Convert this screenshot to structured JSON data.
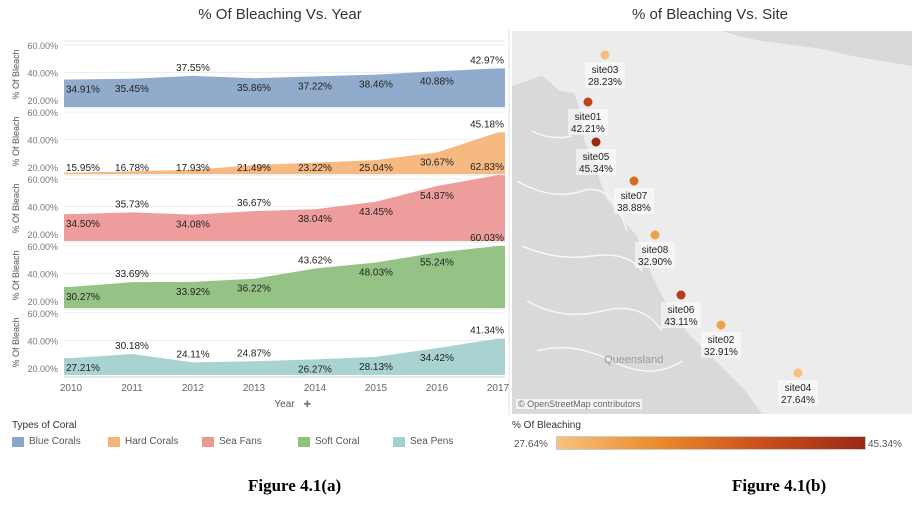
{
  "left_title": "% Of Bleaching Vs. Year",
  "right_title": "% of Bleaching Vs. Site",
  "y_axis_label": "% Of Bleach",
  "x_axis_label": "Year",
  "legend_title": "Types of Coral",
  "color_legend_title": "% Of Bleaching",
  "color_min": "27.64%",
  "color_max": "45.34%",
  "attribution": "© OpenStreetMap contributors",
  "map_label": "Queensland",
  "caption_a": "Figure 4.1(a)",
  "caption_b": "Figure 4.1(b)",
  "colors": {
    "Blue Corals": "#8aa6c8",
    "Hard Corals": "#f5b57a",
    "Sea Fans": "#ec9897",
    "Soft Coral": "#8fc07e",
    "Sea Pens": "#a4d1cd"
  },
  "chart_data": [
    {
      "type": "area",
      "title": "% Of Bleaching Vs. Year",
      "xlabel": "Year",
      "ylabel": "% Of Bleach",
      "x": [
        2010,
        2011,
        2012,
        2013,
        2014,
        2015,
        2016,
        2017
      ],
      "ytick_labels": [
        "20.00%",
        "40.00%",
        "60.00%"
      ],
      "ylim": [
        20,
        60
      ],
      "series": [
        {
          "name": "Blue Corals",
          "values": [
            34.91,
            35.45,
            37.55,
            35.86,
            37.22,
            38.46,
            40.88,
            42.97
          ]
        },
        {
          "name": "Hard Corals",
          "values": [
            15.95,
            16.78,
            17.93,
            21.49,
            23.22,
            25.04,
            30.67,
            45.18
          ]
        },
        {
          "name": "Sea Fans",
          "values": [
            34.5,
            35.73,
            34.08,
            36.67,
            38.04,
            43.45,
            54.87,
            62.83
          ]
        },
        {
          "name": "Soft Coral",
          "values": [
            30.27,
            33.69,
            33.92,
            36.22,
            43.62,
            48.03,
            55.24,
            60.03
          ]
        },
        {
          "name": "Sea Pens",
          "values": [
            27.21,
            30.18,
            24.11,
            24.87,
            26.27,
            28.13,
            34.42,
            41.34
          ]
        }
      ],
      "labels": [
        [
          "34.91%",
          "35.45%",
          "37.55%",
          "35.86%",
          "37.22%",
          "38.46%",
          "40.88%",
          "42.97%"
        ],
        [
          "15.95%",
          "16.78%",
          "17.93%",
          "21.49%",
          "23.22%",
          "25.04%",
          "30.67%",
          "45.18%"
        ],
        [
          "34.50%",
          "35.73%",
          "34.08%",
          "36.67%",
          "38.04%",
          "43.45%",
          "54.87%",
          "62.83%"
        ],
        [
          "30.27%",
          "33.69%",
          "33.92%",
          "36.22%",
          "43.62%",
          "48.03%",
          "55.24%",
          "60.03%"
        ],
        [
          "27.21%",
          "30.18%",
          "24.11%",
          "24.87%",
          "26.27%",
          "28.13%",
          "34.42%",
          "41.34%"
        ]
      ],
      "legend_position": "bottom"
    },
    {
      "type": "scatter",
      "title": "% of Bleaching Vs. Site",
      "color_legend": "% Of Bleaching",
      "color_range": [
        27.64,
        45.34
      ],
      "sites": [
        {
          "name": "site03",
          "value": 28.23,
          "label": "28.23%"
        },
        {
          "name": "site01",
          "value": 42.21,
          "label": "42.21%"
        },
        {
          "name": "site05",
          "value": 45.34,
          "label": "45.34%"
        },
        {
          "name": "site07",
          "value": 38.88,
          "label": "38.88%"
        },
        {
          "name": "site08",
          "value": 32.9,
          "label": "32.90%"
        },
        {
          "name": "site06",
          "value": 43.11,
          "label": "43.11%"
        },
        {
          "name": "site02",
          "value": 32.91,
          "label": "32.91%"
        },
        {
          "name": "site04",
          "value": 27.64,
          "label": "27.64%"
        }
      ]
    }
  ]
}
